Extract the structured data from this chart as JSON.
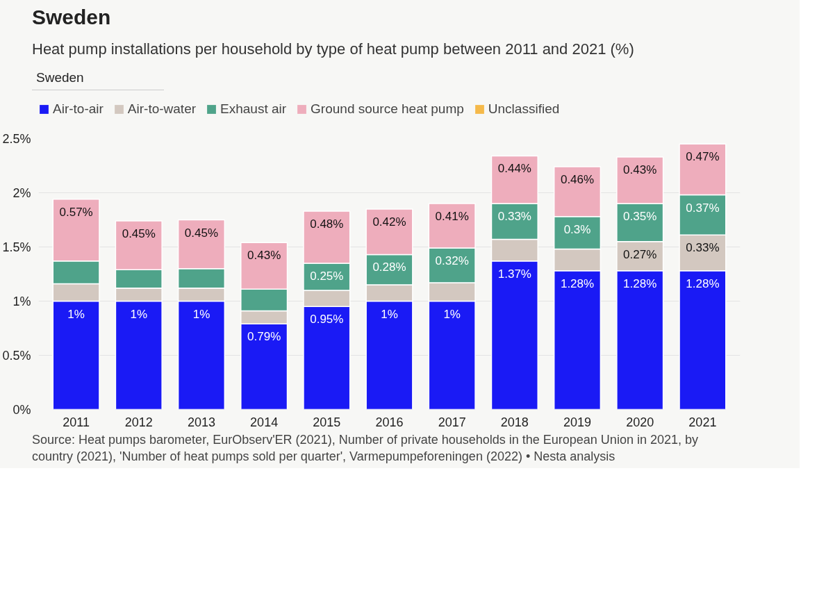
{
  "chart_data": {
    "type": "bar",
    "stacked": true,
    "title": "Sweden",
    "subtitle": "Heat pump installations per household by type of heat pump between 2011 and 2021 (%)",
    "annotations": [
      "Sweden",
      "Source: Heat pumps barometer, EurObserv'ER (2021), Number of private households in the European Union in 2021, by country (2021), 'Number of heat pumps sold per quarter', Varmepumpeforeningen (2022) • Nesta analysis"
    ],
    "categories": [
      "2011",
      "2012",
      "2013",
      "2014",
      "2015",
      "2016",
      "2017",
      "2018",
      "2019",
      "2020",
      "2021"
    ],
    "series": [
      {
        "name": "Air-to-air",
        "color": "#1a1af5",
        "values": [
          1,
          1,
          1,
          0.79,
          0.95,
          1,
          1,
          1.37,
          1.28,
          1.28,
          1.28
        ],
        "value_labels": [
          "1%",
          "1%",
          "1%",
          "0.79%",
          "0.95%",
          "1%",
          "1%",
          "1.37%",
          "1.28%",
          "1.28%",
          "1.28%"
        ]
      },
      {
        "name": "Air-to-water",
        "color": "#d3c8c0",
        "values": [
          0.16,
          0.12,
          0.12,
          0.12,
          0.15,
          0.15,
          0.17,
          0.2,
          0.2,
          0.27,
          0.33
        ],
        "value_labels": [
          null,
          null,
          null,
          null,
          null,
          null,
          null,
          null,
          null,
          "0.27%",
          "0.33%"
        ]
      },
      {
        "name": "Exhaust air",
        "color": "#4fa38a",
        "values": [
          0.21,
          0.17,
          0.18,
          0.2,
          0.25,
          0.28,
          0.32,
          0.33,
          0.3,
          0.35,
          0.37
        ],
        "value_labels": [
          null,
          null,
          null,
          null,
          "0.25%",
          "0.28%",
          "0.32%",
          "0.33%",
          "0.3%",
          "0.35%",
          "0.37%"
        ]
      },
      {
        "name": "Ground source heat pump",
        "color": "#eeadbc",
        "values": [
          0.57,
          0.45,
          0.45,
          0.43,
          0.48,
          0.42,
          0.41,
          0.44,
          0.46,
          0.43,
          0.47
        ],
        "value_labels": [
          "0.57%",
          "0.45%",
          "0.45%",
          "0.43%",
          "0.48%",
          "0.42%",
          "0.41%",
          "0.44%",
          "0.46%",
          "0.43%",
          "0.47%"
        ]
      },
      {
        "name": "Unclassified",
        "color": "#f5b94a",
        "values": [
          0,
          0,
          0,
          0,
          0,
          0,
          0,
          0,
          0,
          0,
          0
        ]
      }
    ],
    "ylim": [
      0,
      2.5
    ],
    "yticks": [
      {
        "value": 0,
        "label": "0%"
      },
      {
        "value": 0.5,
        "label": "0.5%"
      },
      {
        "value": 1,
        "label": "1%"
      },
      {
        "value": 1.5,
        "label": "1.5%"
      },
      {
        "value": 2,
        "label": "2%"
      },
      {
        "value": 2.5,
        "label": "2.5%"
      }
    ],
    "grid": "y",
    "legend": "top"
  }
}
